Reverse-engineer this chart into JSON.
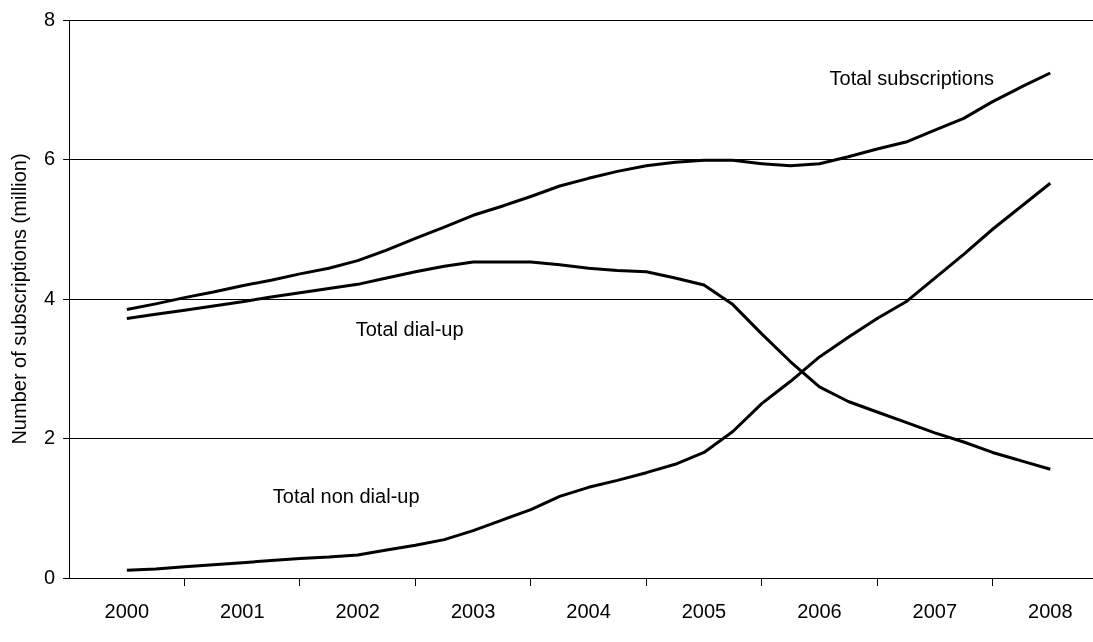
{
  "chart_data": {
    "type": "line",
    "ylabel": "Number of subscriptions (million)",
    "x": [
      2000,
      2000.25,
      2000.5,
      2000.75,
      2001,
      2001.25,
      2001.5,
      2001.75,
      2002,
      2002.25,
      2002.5,
      2002.75,
      2003,
      2003.25,
      2003.5,
      2003.75,
      2004,
      2004.25,
      2004.5,
      2004.75,
      2005,
      2005.25,
      2005.5,
      2005.75,
      2006,
      2006.25,
      2006.5,
      2006.75,
      2007,
      2007.25,
      2007.5,
      2007.75,
      2008
    ],
    "series": [
      {
        "name": "Total subscriptions",
        "color": "#000000",
        "values": [
          3.85,
          3.93,
          4.02,
          4.1,
          4.19,
          4.27,
          4.36,
          4.44,
          4.55,
          4.7,
          4.87,
          5.03,
          5.2,
          5.33,
          5.47,
          5.62,
          5.73,
          5.83,
          5.91,
          5.96,
          5.99,
          5.99,
          5.94,
          5.91,
          5.94,
          6.04,
          6.15,
          6.25,
          6.42,
          6.59,
          6.83,
          7.04,
          7.24
        ]
      },
      {
        "name": "Total dial-up",
        "color": "#000000",
        "values": [
          3.72,
          3.78,
          3.84,
          3.9,
          3.96,
          4.03,
          4.09,
          4.15,
          4.21,
          4.3,
          4.39,
          4.47,
          4.53,
          4.53,
          4.53,
          4.49,
          4.44,
          4.41,
          4.39,
          4.3,
          4.2,
          3.92,
          3.5,
          3.1,
          2.74,
          2.53,
          2.38,
          2.23,
          2.08,
          1.95,
          1.8,
          1.68,
          1.56
        ]
      },
      {
        "name": "Total non dial-up",
        "color": "#000000",
        "values": [
          0.11,
          0.13,
          0.16,
          0.19,
          0.22,
          0.25,
          0.28,
          0.3,
          0.33,
          0.4,
          0.47,
          0.55,
          0.68,
          0.83,
          0.98,
          1.17,
          1.3,
          1.4,
          1.51,
          1.63,
          1.8,
          2.1,
          2.5,
          2.82,
          3.17,
          3.45,
          3.72,
          3.96,
          4.3,
          4.64,
          5.0,
          5.33,
          5.66
        ]
      }
    ],
    "xlim": [
      1999.5,
      2008.37
    ],
    "xticks": [
      2000,
      {
        "value": 2000.5,
        "label": null
      },
      2001,
      {
        "value": 2001.5,
        "label": null
      },
      2002,
      {
        "value": 2002.5,
        "label": null
      },
      2003,
      {
        "value": 2003.5,
        "label": null
      },
      2004,
      {
        "value": 2004.5,
        "label": null
      },
      2005,
      {
        "value": 2005.5,
        "label": null
      },
      2006,
      {
        "value": 2006.5,
        "label": null
      },
      2007,
      {
        "value": 2007.5,
        "label": null
      },
      2008
    ],
    "ylim": [
      0,
      8
    ],
    "yticks": [
      0,
      2,
      4,
      6,
      8
    ],
    "grid": "y",
    "legend": false,
    "marker": "none",
    "line_style": "solid"
  }
}
